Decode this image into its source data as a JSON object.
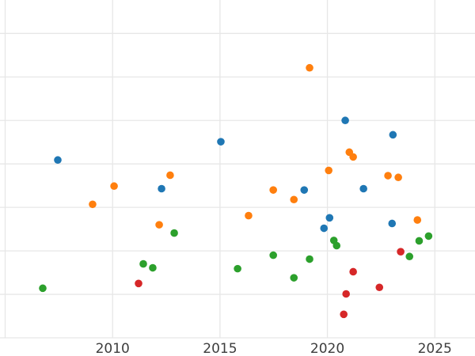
{
  "chart_data": {
    "type": "scatter",
    "title": "",
    "xlabel": "",
    "ylabel": "",
    "background_color": "#ffffff",
    "grid_color": "#e7e7e7",
    "tick_label_color": "#3d3d3d",
    "grid": true,
    "legend": "none",
    "xlim": [
      2004.76,
      2026.87
    ],
    "ylim": [
      0,
      7.77
    ],
    "x_gridlines": [
      2005,
      2010,
      2015,
      2020,
      2025
    ],
    "y_gridlines": [
      0,
      1,
      2,
      3,
      4,
      5,
      6,
      7
    ],
    "x_ticks": [
      2010,
      2015,
      2020,
      2025
    ],
    "x_tick_labels": [
      "2010",
      "2015",
      "2020",
      "2025"
    ],
    "y_tick_labels": [],
    "series": [
      {
        "name": "blue",
        "color": "#1f77b4",
        "points": [
          [
            2007.45,
            4.09
          ],
          [
            2015.04,
            4.51
          ],
          [
            2020.83,
            5.0
          ],
          [
            2023.05,
            4.67
          ],
          [
            2012.28,
            3.43
          ],
          [
            2018.92,
            3.4
          ],
          [
            2021.68,
            3.43
          ],
          [
            2020.1,
            2.76
          ],
          [
            2019.84,
            2.52
          ],
          [
            2023.01,
            2.63
          ]
        ]
      },
      {
        "name": "orange",
        "color": "#ff7f0e",
        "points": [
          [
            2019.17,
            6.21
          ],
          [
            2021.02,
            4.27
          ],
          [
            2021.2,
            4.16
          ],
          [
            2020.06,
            3.85
          ],
          [
            2022.82,
            3.73
          ],
          [
            2023.3,
            3.69
          ],
          [
            2012.68,
            3.74
          ],
          [
            2010.07,
            3.49
          ],
          [
            2009.07,
            3.07
          ],
          [
            2012.17,
            2.6
          ],
          [
            2017.48,
            3.4
          ],
          [
            2018.44,
            3.18
          ],
          [
            2016.33,
            2.81
          ],
          [
            2024.19,
            2.71
          ]
        ]
      },
      {
        "name": "green",
        "color": "#2ca02c",
        "points": [
          [
            2012.87,
            2.41
          ],
          [
            2011.43,
            1.7
          ],
          [
            2011.87,
            1.61
          ],
          [
            2006.75,
            1.14
          ],
          [
            2015.82,
            1.59
          ],
          [
            2020.3,
            2.24
          ],
          [
            2020.43,
            2.12
          ],
          [
            2024.27,
            2.23
          ],
          [
            2024.71,
            2.34
          ],
          [
            2023.82,
            1.87
          ],
          [
            2017.48,
            1.9
          ],
          [
            2019.17,
            1.81
          ],
          [
            2018.44,
            1.38
          ]
        ]
      },
      {
        "name": "red",
        "color": "#d62728",
        "points": [
          [
            2011.21,
            1.25
          ],
          [
            2023.41,
            1.98
          ],
          [
            2021.2,
            1.52
          ],
          [
            2022.42,
            1.16
          ],
          [
            2020.87,
            1.01
          ],
          [
            2020.76,
            0.54
          ]
        ]
      }
    ]
  }
}
